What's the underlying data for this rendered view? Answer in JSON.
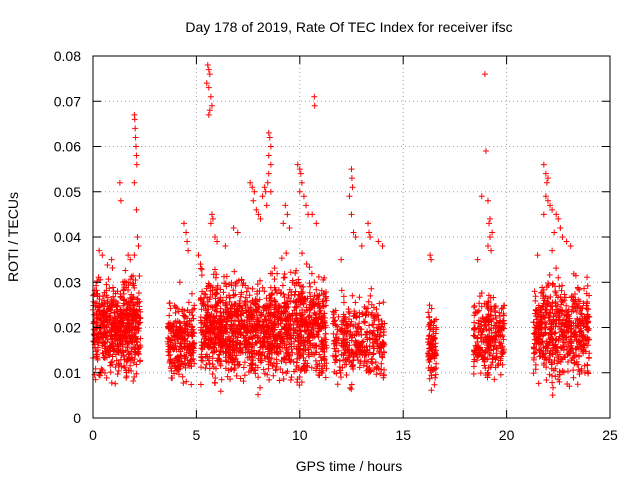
{
  "chart_data": {
    "type": "scatter",
    "title": "Day 178 of 2019, Rate Of TEC Index for receiver ifsc",
    "xlabel": "GPS time / hours",
    "ylabel": "ROTI / TECUs",
    "xlim": [
      0,
      25
    ],
    "ylim": [
      0,
      0.08
    ],
    "xticks": [
      "0",
      "5",
      "10",
      "15",
      "20",
      "25"
    ],
    "yticks": [
      "0",
      "0.01",
      "0.02",
      "0.03",
      "0.04",
      "0.05",
      "0.06",
      "0.07",
      "0.08"
    ],
    "grid": true,
    "marker": "+",
    "color": "#ff0000",
    "clusters": [
      {
        "x_range": [
          0.0,
          2.3
        ],
        "y_range": [
          0.005,
          0.035
        ],
        "density": 620
      },
      {
        "x_range": [
          3.6,
          4.9
        ],
        "y_range": [
          0.005,
          0.03
        ],
        "density": 260
      },
      {
        "x_range": [
          5.2,
          6.6
        ],
        "y_range": [
          0.005,
          0.035
        ],
        "density": 360
      },
      {
        "x_range": [
          6.6,
          9.0
        ],
        "y_range": [
          0.004,
          0.035
        ],
        "density": 600
      },
      {
        "x_range": [
          9.0,
          11.3
        ],
        "y_range": [
          0.004,
          0.037
        ],
        "density": 520
      },
      {
        "x_range": [
          11.6,
          14.1
        ],
        "y_range": [
          0.004,
          0.03
        ],
        "density": 360
      },
      {
        "x_range": [
          16.2,
          16.6
        ],
        "y_range": [
          0.005,
          0.027
        ],
        "density": 90
      },
      {
        "x_range": [
          18.4,
          19.9
        ],
        "y_range": [
          0.006,
          0.03
        ],
        "density": 260
      },
      {
        "x_range": [
          21.3,
          24.0
        ],
        "y_range": [
          0.004,
          0.035
        ],
        "density": 560
      }
    ],
    "points": [
      [
        0.3,
        0.037
      ],
      [
        0.45,
        0.036
      ],
      [
        0.9,
        0.035
      ],
      [
        1.3,
        0.052
      ],
      [
        1.35,
        0.048
      ],
      [
        1.7,
        0.036
      ],
      [
        1.8,
        0.035
      ],
      [
        2.0,
        0.067
      ],
      [
        2.02,
        0.066
      ],
      [
        2.04,
        0.064
      ],
      [
        2.06,
        0.062
      ],
      [
        2.08,
        0.06
      ],
      [
        2.1,
        0.058
      ],
      [
        2.12,
        0.056
      ],
      [
        2.0,
        0.052
      ],
      [
        2.1,
        0.046
      ],
      [
        2.15,
        0.04
      ],
      [
        2.2,
        0.038
      ],
      [
        2.0,
        0.036
      ],
      [
        4.4,
        0.043
      ],
      [
        4.5,
        0.041
      ],
      [
        4.55,
        0.039
      ],
      [
        4.6,
        0.037
      ],
      [
        4.2,
        0.03
      ],
      [
        5.1,
        0.036
      ],
      [
        5.2,
        0.034
      ],
      [
        5.55,
        0.078
      ],
      [
        5.6,
        0.077
      ],
      [
        5.65,
        0.076
      ],
      [
        5.5,
        0.074
      ],
      [
        5.6,
        0.073
      ],
      [
        5.7,
        0.071
      ],
      [
        5.75,
        0.069
      ],
      [
        5.65,
        0.068
      ],
      [
        5.6,
        0.067
      ],
      [
        5.75,
        0.045
      ],
      [
        5.8,
        0.044
      ],
      [
        5.7,
        0.043
      ],
      [
        5.9,
        0.04
      ],
      [
        6.0,
        0.039
      ],
      [
        6.4,
        0.038
      ],
      [
        6.8,
        0.042
      ],
      [
        7.0,
        0.041
      ],
      [
        7.6,
        0.052
      ],
      [
        7.7,
        0.051
      ],
      [
        7.8,
        0.05
      ],
      [
        7.75,
        0.048
      ],
      [
        7.9,
        0.046
      ],
      [
        8.0,
        0.045
      ],
      [
        8.1,
        0.044
      ],
      [
        8.2,
        0.049
      ],
      [
        8.3,
        0.051
      ],
      [
        8.35,
        0.05
      ],
      [
        8.5,
        0.063
      ],
      [
        8.55,
        0.062
      ],
      [
        8.6,
        0.06
      ],
      [
        8.5,
        0.058
      ],
      [
        8.6,
        0.056
      ],
      [
        8.5,
        0.054
      ],
      [
        8.45,
        0.052
      ],
      [
        8.6,
        0.05
      ],
      [
        8.4,
        0.047
      ],
      [
        9.2,
        0.043
      ],
      [
        9.3,
        0.047
      ],
      [
        9.4,
        0.045
      ],
      [
        9.5,
        0.042
      ],
      [
        9.9,
        0.056
      ],
      [
        10.0,
        0.055
      ],
      [
        10.05,
        0.054
      ],
      [
        10.1,
        0.052
      ],
      [
        10.0,
        0.05
      ],
      [
        10.2,
        0.049
      ],
      [
        10.3,
        0.047
      ],
      [
        10.4,
        0.045
      ],
      [
        10.7,
        0.071
      ],
      [
        10.72,
        0.069
      ],
      [
        10.6,
        0.045
      ],
      [
        10.8,
        0.043
      ],
      [
        12.5,
        0.055
      ],
      [
        12.52,
        0.053
      ],
      [
        12.55,
        0.051
      ],
      [
        12.4,
        0.049
      ],
      [
        12.5,
        0.045
      ],
      [
        12.6,
        0.041
      ],
      [
        12.7,
        0.04
      ],
      [
        12.0,
        0.035
      ],
      [
        13.0,
        0.038
      ],
      [
        13.3,
        0.043
      ],
      [
        13.35,
        0.041
      ],
      [
        13.4,
        0.04
      ],
      [
        13.8,
        0.039
      ],
      [
        14.0,
        0.038
      ],
      [
        16.3,
        0.036
      ],
      [
        16.35,
        0.035
      ],
      [
        18.8,
        0.049
      ],
      [
        18.95,
        0.076
      ],
      [
        19.0,
        0.059
      ],
      [
        19.1,
        0.048
      ],
      [
        19.2,
        0.044
      ],
      [
        19.15,
        0.043
      ],
      [
        19.3,
        0.041
      ],
      [
        19.2,
        0.04
      ],
      [
        19.1,
        0.038
      ],
      [
        19.25,
        0.037
      ],
      [
        18.6,
        0.035
      ],
      [
        21.8,
        0.056
      ],
      [
        21.9,
        0.054
      ],
      [
        22.0,
        0.053
      ],
      [
        21.95,
        0.052
      ],
      [
        21.9,
        0.049
      ],
      [
        22.0,
        0.048
      ],
      [
        22.1,
        0.047
      ],
      [
        21.8,
        0.045
      ],
      [
        22.2,
        0.046
      ],
      [
        22.4,
        0.045
      ],
      [
        22.5,
        0.044
      ],
      [
        22.6,
        0.042
      ],
      [
        22.3,
        0.041
      ],
      [
        22.7,
        0.04
      ],
      [
        22.9,
        0.039
      ],
      [
        23.1,
        0.038
      ],
      [
        22.2,
        0.037
      ],
      [
        21.5,
        0.036
      ]
    ]
  }
}
